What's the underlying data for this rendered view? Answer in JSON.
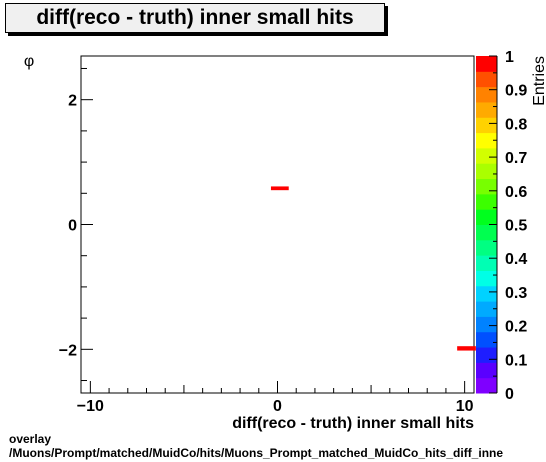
{
  "chart_data": {
    "type": "heatmap",
    "title": "diff(reco - truth) inner small hits",
    "xlabel": "diff(reco - truth) inner small hits",
    "ylabel": "φ",
    "zlabel": "Entries",
    "xlim": [
      -10.5,
      10.5
    ],
    "ylim": [
      -2.7,
      2.7
    ],
    "zlim": [
      0,
      1
    ],
    "x_ticks": [
      -10,
      0,
      10
    ],
    "y_ticks": [
      -2,
      0,
      2
    ],
    "z_ticks": [
      "0",
      "0.1",
      "0.2",
      "0.3",
      "0.4",
      "0.5",
      "0.6",
      "0.7",
      "0.8",
      "0.9",
      "1"
    ],
    "cells": [
      {
        "x": [
          -0.35,
          0.6
        ],
        "y": [
          0.55,
          0.61
        ],
        "value": 1
      },
      {
        "x": [
          9.6,
          10.6
        ],
        "y": [
          -2.02,
          -1.95
        ],
        "value": 1
      }
    ],
    "palette": [
      "#7f00ff",
      "#5a00ff",
      "#1e1eff",
      "#0050ff",
      "#0082ff",
      "#00aaff",
      "#00d2ff",
      "#00ffe6",
      "#00ffb4",
      "#00ff82",
      "#00ff50",
      "#00ff1e",
      "#3cff00",
      "#78ff00",
      "#aaff00",
      "#d2ff00",
      "#ffff00",
      "#ffd200",
      "#ffaa00",
      "#ff8200",
      "#ff5000",
      "#ff0000"
    ],
    "grid": false
  },
  "footer": {
    "line1": "overlay",
    "line2": "/Muons/Prompt/matched/MuidCo/hits/Muons_Prompt_matched_MuidCo_hits_diff_inne"
  }
}
